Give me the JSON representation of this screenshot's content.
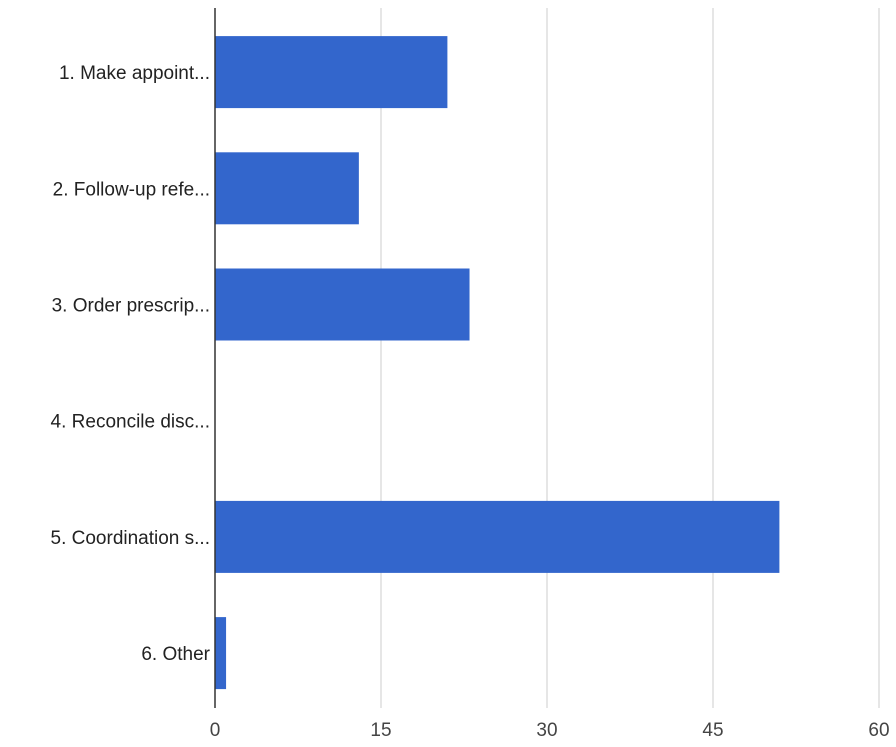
{
  "chart_data": {
    "type": "bar",
    "orientation": "horizontal",
    "categories": [
      "1. Make appoint...",
      "2. Follow-up refe...",
      "3. Order prescrip...",
      "4. Reconcile disc...",
      "5. Coordination s...",
      "6. Other"
    ],
    "values": [
      21,
      13,
      23,
      0,
      51,
      1
    ],
    "xlim": [
      0,
      60
    ],
    "x_ticks": [
      "0",
      "15",
      "30",
      "45",
      "60"
    ],
    "title": "",
    "xlabel": "",
    "ylabel": "",
    "grid": true,
    "legend": "none",
    "colors": {
      "bar": "#3366cc",
      "gridline": "#cccccc",
      "axis": "#333333",
      "label_text": "#222222",
      "tick_text": "#444444"
    }
  }
}
